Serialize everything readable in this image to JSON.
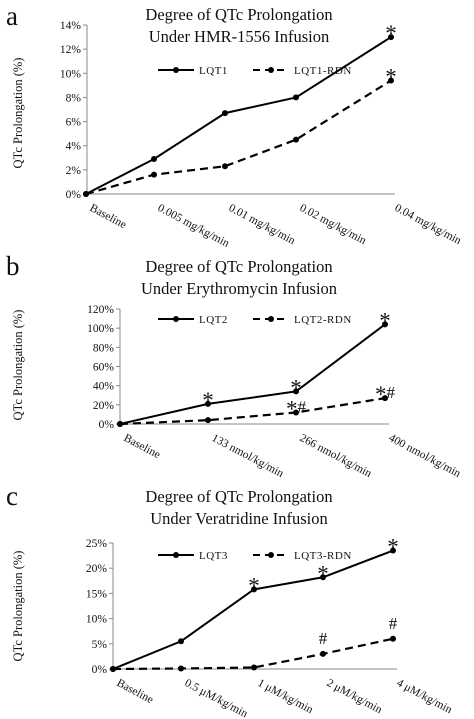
{
  "chart_data": [
    {
      "type": "line",
      "panel_label": "a",
      "title_lines": [
        "Degree of QTc Prolongation",
        "Under HMR-1556 Infusion"
      ],
      "ylabel": "QTc Prolongation (%)",
      "ylim": [
        0,
        14
      ],
      "yticks": [
        0,
        2,
        4,
        6,
        8,
        10,
        12,
        14
      ],
      "yticklabels": [
        "0%",
        "2%",
        "4%",
        "6%",
        "8%",
        "10%",
        "12%",
        "14%"
      ],
      "categories": [
        "Baseline",
        "0.005 mg/kg/min",
        "0.01 mg/kg/min",
        "0.02 mg/kg/min",
        "0.04 mg/kg/min"
      ],
      "series": [
        {
          "name": "LQT1",
          "style": "solid",
          "values": [
            0,
            2.9,
            6.7,
            8.0,
            13.0
          ]
        },
        {
          "name": "LQT1-RDN",
          "style": "dashed",
          "values": [
            0,
            1.6,
            2.3,
            4.5,
            9.4
          ]
        }
      ],
      "annotations": [
        {
          "text": "*",
          "series": 0,
          "index": 4
        },
        {
          "text": "*",
          "series": 1,
          "index": 4
        }
      ],
      "legend": "top",
      "grid": false
    },
    {
      "type": "line",
      "panel_label": "b",
      "title_lines": [
        "Degree of QTc Prolongation",
        "Under Erythromycin Infusion"
      ],
      "ylabel": "QTc Prolongation (%)",
      "ylim": [
        0,
        120
      ],
      "yticks": [
        0,
        20,
        40,
        60,
        80,
        100,
        120
      ],
      "yticklabels": [
        "0%",
        "20%",
        "40%",
        "60%",
        "80%",
        "100%",
        "120%"
      ],
      "categories": [
        "Baseline",
        "133 nmol/kg/min",
        "266 nmol/kg/min",
        "400 nmol/kg/min"
      ],
      "series": [
        {
          "name": "LQT2",
          "style": "solid",
          "values": [
            0,
            21,
            34,
            104
          ]
        },
        {
          "name": "LQT2-RDN",
          "style": "dashed",
          "values": [
            0,
            4,
            12,
            27
          ]
        }
      ],
      "annotations": [
        {
          "text": "*",
          "series": 0,
          "index": 1
        },
        {
          "text": "*",
          "series": 0,
          "index": 2
        },
        {
          "text": "*",
          "series": 0,
          "index": 3
        },
        {
          "text": "*#",
          "series": 1,
          "index": 2
        },
        {
          "text": "*#",
          "series": 1,
          "index": 3
        }
      ],
      "legend": "top",
      "grid": false
    },
    {
      "type": "line",
      "panel_label": "c",
      "title_lines": [
        "Degree of QTc Prolongation",
        "Under Veratridine Infusion"
      ],
      "ylabel": "QTc Prolongation (%)",
      "ylim": [
        0,
        25
      ],
      "yticks": [
        0,
        5,
        10,
        15,
        20,
        25
      ],
      "yticklabels": [
        "0%",
        "5%",
        "10%",
        "15%",
        "20%",
        "25%"
      ],
      "categories": [
        "Baseline",
        "0.5 μM/kg/min",
        "1 μM/kg/min",
        "2 μM/kg/min",
        "4 μM/kg/min"
      ],
      "series": [
        {
          "name": "LQT3",
          "style": "solid",
          "values": [
            0,
            5.5,
            15.8,
            18.2,
            23.5
          ]
        },
        {
          "name": "LQT3-RDN",
          "style": "dashed",
          "values": [
            0,
            0.1,
            0.3,
            3.0,
            6.0
          ]
        }
      ],
      "annotations": [
        {
          "text": "*",
          "series": 0,
          "index": 2
        },
        {
          "text": "*",
          "series": 0,
          "index": 3
        },
        {
          "text": "*",
          "series": 0,
          "index": 4
        },
        {
          "text": "#",
          "series": 1,
          "index": 3
        },
        {
          "text": "#",
          "series": 1,
          "index": 4
        }
      ],
      "legend": "top",
      "grid": false
    }
  ]
}
